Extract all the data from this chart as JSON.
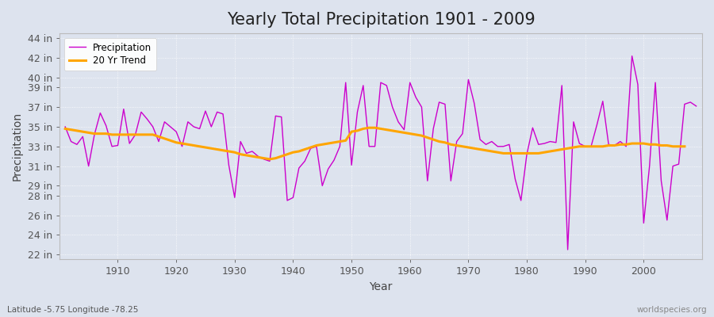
{
  "title": "Yearly Total Precipitation 1901 - 2009",
  "xlabel": "Year",
  "ylabel": "Precipitation",
  "subtitle_lat": "Latitude -5.75 Longitude -78.25",
  "watermark": "worldspecies.org",
  "bg_color": "#dde3ee",
  "plot_bg_color": "#dde3ee",
  "line_color": "#cc00cc",
  "trend_color": "#ffa500",
  "years": [
    1901,
    1902,
    1903,
    1904,
    1905,
    1906,
    1907,
    1908,
    1909,
    1910,
    1911,
    1912,
    1913,
    1914,
    1915,
    1916,
    1917,
    1918,
    1919,
    1920,
    1921,
    1922,
    1923,
    1924,
    1925,
    1926,
    1927,
    1928,
    1929,
    1930,
    1931,
    1932,
    1933,
    1934,
    1935,
    1936,
    1937,
    1938,
    1939,
    1940,
    1941,
    1942,
    1943,
    1944,
    1945,
    1946,
    1947,
    1948,
    1949,
    1950,
    1951,
    1952,
    1953,
    1954,
    1955,
    1956,
    1957,
    1958,
    1959,
    1960,
    1961,
    1962,
    1963,
    1964,
    1965,
    1966,
    1967,
    1968,
    1969,
    1970,
    1971,
    1972,
    1973,
    1974,
    1975,
    1976,
    1977,
    1978,
    1979,
    1980,
    1981,
    1982,
    1983,
    1984,
    1985,
    1986,
    1987,
    1988,
    1989,
    1990,
    1991,
    1992,
    1993,
    1994,
    1995,
    1996,
    1997,
    1998,
    1999,
    2000,
    2001,
    2002,
    2003,
    2004,
    2005,
    2006,
    2007,
    2008,
    2009
  ],
  "precip": [
    35.0,
    33.5,
    33.2,
    34.0,
    31.0,
    34.2,
    36.4,
    35.1,
    33.0,
    33.1,
    36.8,
    33.3,
    34.2,
    36.5,
    35.8,
    35.0,
    33.5,
    35.5,
    35.0,
    34.5,
    33.0,
    35.5,
    35.0,
    34.8,
    36.6,
    35.0,
    36.5,
    36.3,
    31.1,
    27.8,
    33.5,
    32.3,
    32.5,
    32.0,
    31.7,
    31.5,
    36.1,
    36.0,
    27.5,
    27.8,
    30.8,
    31.5,
    32.8,
    33.0,
    29.0,
    30.7,
    31.6,
    33.0,
    39.5,
    31.1,
    36.5,
    39.2,
    33.0,
    33.0,
    39.5,
    39.2,
    37.0,
    35.5,
    34.7,
    39.5,
    38.0,
    37.0,
    29.5,
    34.8,
    37.5,
    37.3,
    29.5,
    33.5,
    34.3,
    39.8,
    37.4,
    33.7,
    33.2,
    33.5,
    33.0,
    33.0,
    33.2,
    29.7,
    27.5,
    32.2,
    34.9,
    33.2,
    33.3,
    33.5,
    33.4,
    39.2,
    22.5,
    35.5,
    33.3,
    33.0,
    33.0,
    35.2,
    37.6,
    33.2,
    33.1,
    33.5,
    33.0,
    42.2,
    39.3,
    25.2,
    31.0,
    39.5,
    29.5,
    25.5,
    31.0,
    31.2,
    37.3,
    37.5,
    37.1
  ],
  "trend": [
    34.8,
    34.7,
    34.6,
    34.5,
    34.4,
    34.3,
    34.3,
    34.3,
    34.2,
    34.2,
    34.2,
    34.2,
    34.2,
    34.2,
    34.2,
    34.2,
    34.0,
    33.8,
    33.6,
    33.4,
    33.3,
    33.2,
    33.1,
    33.0,
    32.9,
    32.8,
    32.7,
    32.6,
    32.5,
    32.4,
    32.2,
    32.1,
    32.0,
    31.9,
    31.8,
    31.7,
    31.8,
    32.0,
    32.2,
    32.4,
    32.5,
    32.7,
    32.9,
    33.1,
    33.2,
    33.3,
    33.4,
    33.5,
    33.6,
    34.5,
    34.6,
    34.8,
    34.9,
    34.9,
    34.8,
    34.7,
    34.6,
    34.5,
    34.4,
    34.3,
    34.2,
    34.1,
    33.9,
    33.7,
    33.5,
    33.4,
    33.2,
    33.1,
    33.0,
    32.9,
    32.8,
    32.7,
    32.6,
    32.5,
    32.4,
    32.3,
    32.3,
    32.3,
    32.3,
    32.3,
    32.3,
    32.3,
    32.4,
    32.5,
    32.6,
    32.7,
    32.8,
    32.9,
    33.0,
    33.0,
    33.0,
    33.0,
    33.0,
    33.1,
    33.1,
    33.2,
    33.2,
    33.3,
    33.3,
    33.3,
    33.2,
    33.2,
    33.1,
    33.1,
    33.0,
    33.0,
    33.0,
    null,
    null
  ],
  "ylim": [
    21.5,
    44.5
  ],
  "yticks": [
    22,
    24,
    26,
    28,
    29,
    31,
    33,
    35,
    37,
    39,
    40,
    42,
    44
  ],
  "ytick_labels": [
    "22 in",
    "24 in",
    "26 in",
    "28 in",
    "29 in",
    "31 in",
    "33 in",
    "35 in",
    "37 in",
    "39 in",
    "40 in",
    "42 in",
    "44 in"
  ],
  "xticks": [
    1910,
    1920,
    1930,
    1940,
    1950,
    1960,
    1970,
    1980,
    1990,
    2000
  ],
  "title_fontsize": 15,
  "axis_fontsize": 10,
  "tick_fontsize": 9
}
